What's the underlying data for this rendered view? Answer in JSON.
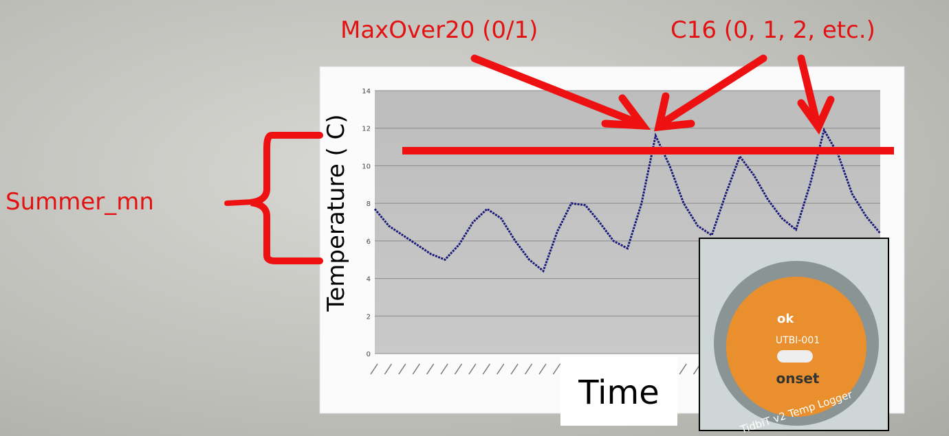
{
  "annotations": {
    "max_over": "MaxOver20 (0/1)",
    "c16": "C16 (0, 1, 2, etc.)",
    "summer_mn": "Summer_mn"
  },
  "chart_data": {
    "type": "line",
    "y_label": "Temperature ( C)",
    "x_label": "Time",
    "categories": [
      null,
      null,
      null,
      null,
      null,
      null,
      null,
      null,
      null,
      null,
      null,
      null,
      null,
      null,
      null,
      null,
      null,
      null,
      null,
      null,
      null,
      null,
      null,
      null,
      null,
      null,
      null,
      null,
      null,
      null,
      null,
      null,
      null,
      null,
      null,
      null,
      null
    ],
    "values": [
      7.7,
      6.8,
      6.3,
      5.8,
      5.3,
      5.0,
      5.8,
      7.0,
      7.7,
      7.2,
      6.0,
      5.0,
      4.4,
      6.5,
      8.0,
      7.9,
      7.0,
      6.0,
      5.6,
      8.0,
      11.6,
      10.0,
      8.0,
      6.8,
      6.3,
      8.5,
      10.5,
      9.5,
      8.2,
      7.2,
      6.6,
      9.0,
      11.9,
      10.6,
      8.5,
      7.3,
      6.4
    ],
    "color": "#1a1a7a",
    "reference_value": 10.8,
    "reference_color": "#ee1111",
    "ylim": [
      0,
      14
    ],
    "yticks": [
      0,
      2,
      4,
      6,
      8,
      10,
      12,
      14
    ],
    "grid": true
  },
  "device": {
    "status": "ok",
    "model": "UTBI-001",
    "brand": "onset",
    "name": "TidbiT v2 Temp Logger"
  }
}
